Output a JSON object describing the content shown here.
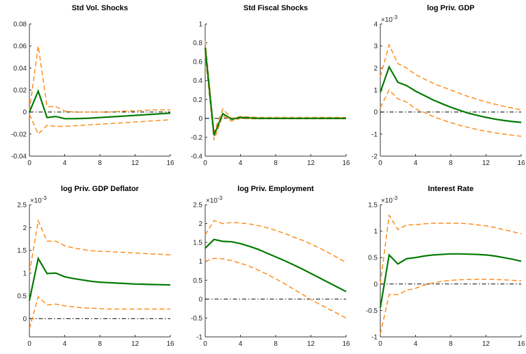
{
  "chart_data": [
    {
      "type": "line",
      "title": "Std Vol. Shocks",
      "x": [
        0,
        1,
        2,
        3,
        4,
        5,
        6,
        7,
        8,
        9,
        10,
        11,
        12,
        13,
        14,
        15,
        16
      ],
      "xlim": [
        0,
        16
      ],
      "xticks": [
        0,
        4,
        8,
        12,
        16
      ],
      "ylim": [
        -0.04,
        0.08
      ],
      "yticks": [
        -0.04,
        -0.02,
        0,
        0.02,
        0.04,
        0.06,
        0.08
      ],
      "zero_line": true,
      "series": [
        {
          "color": "#ff8c1a",
          "style": "dashed",
          "values": [
            0.001,
            0.06,
            0.005,
            0.005,
            0.001,
            0,
            0,
            0,
            0,
            0,
            0.0005,
            0.001,
            0.001,
            0.0015,
            0.002,
            0.002,
            0.002
          ]
        },
        {
          "color": "#ff8c1a",
          "style": "dashed",
          "values": [
            -0.002,
            -0.02,
            -0.012,
            -0.013,
            -0.013,
            -0.0125,
            -0.012,
            -0.0115,
            -0.011,
            -0.0105,
            -0.01,
            -0.0095,
            -0.009,
            -0.0085,
            -0.008,
            -0.0075,
            -0.007
          ]
        },
        {
          "color": "#007a00",
          "style": "solid",
          "values": [
            0,
            0.019,
            -0.005,
            -0.004,
            -0.006,
            -0.006,
            -0.0058,
            -0.0055,
            -0.005,
            -0.0045,
            -0.004,
            -0.0035,
            -0.003,
            -0.0025,
            -0.002,
            -0.0015,
            -0.001
          ]
        }
      ]
    },
    {
      "type": "line",
      "title": "Std Fiscal Shocks",
      "x": [
        0,
        1,
        2,
        3,
        4,
        5,
        6,
        7,
        8,
        9,
        10,
        11,
        12,
        13,
        14,
        15,
        16
      ],
      "xlim": [
        0,
        16
      ],
      "xticks": [
        0,
        4,
        8,
        12,
        16
      ],
      "ylim": [
        -0.4,
        1
      ],
      "yticks": [
        -0.4,
        -0.2,
        0,
        0.2,
        0.4,
        0.6,
        0.8,
        1
      ],
      "zero_line": true,
      "series": [
        {
          "color": "#ff8c1a",
          "style": "dashed",
          "values": [
            0.82,
            -0.15,
            0.1,
            0,
            0.02,
            0.015,
            0.01,
            0.01,
            0.01,
            0.01,
            0.01,
            0.01,
            0.01,
            0.01,
            0.01,
            0.01,
            0.01
          ]
        },
        {
          "color": "#ff8c1a",
          "style": "dashed",
          "values": [
            0.68,
            -0.23,
            0.03,
            -0.03,
            0,
            -0.005,
            -0.005,
            -0.005,
            -0.005,
            -0.005,
            -0.005,
            -0.005,
            -0.005,
            -0.005,
            -0.005,
            -0.005,
            -0.005
          ]
        },
        {
          "color": "#007a00",
          "style": "solid",
          "values": [
            0.75,
            -0.18,
            0.05,
            -0.01,
            0.01,
            0.005,
            0,
            0,
            0,
            0,
            0,
            0,
            0,
            0,
            0,
            0,
            0
          ]
        }
      ]
    },
    {
      "type": "line",
      "title": "log Priv. GDP",
      "y_multiplier": {
        "base": "×10",
        "exponent": "-3"
      },
      "x": [
        0,
        1,
        2,
        3,
        4,
        5,
        6,
        7,
        8,
        9,
        10,
        11,
        12,
        13,
        14,
        15,
        16
      ],
      "xlim": [
        0,
        16
      ],
      "xticks": [
        0,
        4,
        8,
        12,
        16
      ],
      "ylim": [
        -2,
        4
      ],
      "yticks": [
        -2,
        -1,
        0,
        1,
        2,
        3,
        4
      ],
      "zero_line": true,
      "series": [
        {
          "color": "#ff8c1a",
          "style": "dashed",
          "values": [
            1.6,
            3.05,
            2.2,
            2.0,
            1.7,
            1.5,
            1.3,
            1.15,
            1.0,
            0.85,
            0.7,
            0.58,
            0.46,
            0.36,
            0.26,
            0.18,
            0.1
          ]
        },
        {
          "color": "#ff8c1a",
          "style": "dashed",
          "values": [
            0.2,
            1.0,
            0.6,
            0.45,
            0.15,
            -0.02,
            -0.2,
            -0.35,
            -0.48,
            -0.6,
            -0.7,
            -0.79,
            -0.87,
            -0.94,
            -1.0,
            -1.05,
            -1.1
          ]
        },
        {
          "color": "#007a00",
          "style": "solid",
          "values": [
            0.9,
            2.05,
            1.35,
            1.2,
            0.95,
            0.75,
            0.55,
            0.38,
            0.22,
            0.08,
            -0.05,
            -0.15,
            -0.24,
            -0.32,
            -0.38,
            -0.43,
            -0.47
          ]
        }
      ]
    },
    {
      "type": "line",
      "title": "log Priv. GDP Deflator",
      "y_multiplier": {
        "base": "×10",
        "exponent": "-3"
      },
      "x": [
        0,
        1,
        2,
        3,
        4,
        5,
        6,
        7,
        8,
        9,
        10,
        11,
        12,
        13,
        14,
        15,
        16
      ],
      "xlim": [
        0,
        16
      ],
      "xticks": [
        0,
        4,
        8,
        12,
        16
      ],
      "ylim": [
        -0.4,
        2.5
      ],
      "yticks": [
        0,
        0.5,
        1,
        1.5,
        2,
        2.5
      ],
      "zero_line": true,
      "series": [
        {
          "color": "#ff8c1a",
          "style": "dashed",
          "values": [
            1.0,
            2.15,
            1.7,
            1.7,
            1.6,
            1.55,
            1.52,
            1.49,
            1.48,
            1.47,
            1.46,
            1.45,
            1.44,
            1.43,
            1.42,
            1.41,
            1.4
          ]
        },
        {
          "color": "#ff8c1a",
          "style": "dashed",
          "values": [
            -0.22,
            0.48,
            0.3,
            0.32,
            0.28,
            0.26,
            0.24,
            0.23,
            0.22,
            0.21,
            0.21,
            0.21,
            0.21,
            0.21,
            0.21,
            0.21,
            0.21
          ]
        },
        {
          "color": "#007a00",
          "style": "solid",
          "values": [
            0.4,
            1.32,
            0.99,
            1.0,
            0.92,
            0.88,
            0.85,
            0.82,
            0.8,
            0.79,
            0.78,
            0.77,
            0.76,
            0.755,
            0.75,
            0.745,
            0.74
          ]
        }
      ]
    },
    {
      "type": "line",
      "title": "log Priv. Employment",
      "y_multiplier": {
        "base": "×10",
        "exponent": "-3"
      },
      "x": [
        0,
        1,
        2,
        3,
        4,
        5,
        6,
        7,
        8,
        9,
        10,
        11,
        12,
        13,
        14,
        15,
        16
      ],
      "xlim": [
        0,
        16
      ],
      "xticks": [
        0,
        4,
        8,
        12,
        16
      ],
      "ylim": [
        -1,
        2.5
      ],
      "yticks": [
        -1,
        -0.5,
        0,
        0.5,
        1,
        1.5,
        2,
        2.5
      ],
      "zero_line": true,
      "series": [
        {
          "color": "#ff8c1a",
          "style": "dashed",
          "values": [
            1.7,
            2.08,
            2.0,
            2.03,
            2.02,
            1.99,
            1.95,
            1.89,
            1.82,
            1.74,
            1.65,
            1.56,
            1.46,
            1.35,
            1.23,
            1.1,
            0.97
          ]
        },
        {
          "color": "#ff8c1a",
          "style": "dashed",
          "values": [
            1.0,
            1.08,
            1.07,
            1.02,
            0.95,
            0.87,
            0.77,
            0.66,
            0.54,
            0.41,
            0.27,
            0.13,
            -0.01,
            -0.14,
            -0.26,
            -0.38,
            -0.5
          ]
        },
        {
          "color": "#007a00",
          "style": "solid",
          "values": [
            1.35,
            1.58,
            1.53,
            1.52,
            1.47,
            1.4,
            1.32,
            1.22,
            1.12,
            1.02,
            0.91,
            0.8,
            0.68,
            0.56,
            0.44,
            0.32,
            0.2
          ]
        }
      ]
    },
    {
      "type": "line",
      "title": "Interest Rate",
      "y_multiplier": {
        "base": "×10",
        "exponent": "-3"
      },
      "x": [
        0,
        1,
        2,
        3,
        4,
        5,
        6,
        7,
        8,
        9,
        10,
        11,
        12,
        13,
        14,
        15,
        16
      ],
      "xlim": [
        0,
        16
      ],
      "xticks": [
        0,
        4,
        8,
        12,
        16
      ],
      "ylim": [
        -1,
        1.5
      ],
      "yticks": [
        -1,
        -0.5,
        0,
        0.5,
        1,
        1.5
      ],
      "zero_line": true,
      "series": [
        {
          "color": "#ff8c1a",
          "style": "dashed",
          "values": [
            0,
            1.3,
            1.03,
            1.12,
            1.12,
            1.14,
            1.15,
            1.15,
            1.15,
            1.15,
            1.14,
            1.12,
            1.1,
            1.07,
            1.03,
            0.99,
            0.95
          ]
        },
        {
          "color": "#ff8c1a",
          "style": "dashed",
          "values": [
            -0.95,
            -0.2,
            -0.2,
            -0.12,
            -0.08,
            -0.02,
            0.02,
            0.05,
            0.07,
            0.08,
            0.085,
            0.09,
            0.09,
            0.085,
            0.08,
            0.07,
            0.06
          ]
        },
        {
          "color": "#007a00",
          "style": "solid",
          "values": [
            -0.45,
            0.55,
            0.38,
            0.48,
            0.5,
            0.53,
            0.55,
            0.56,
            0.57,
            0.57,
            0.565,
            0.56,
            0.55,
            0.53,
            0.5,
            0.47,
            0.43
          ]
        }
      ]
    }
  ]
}
